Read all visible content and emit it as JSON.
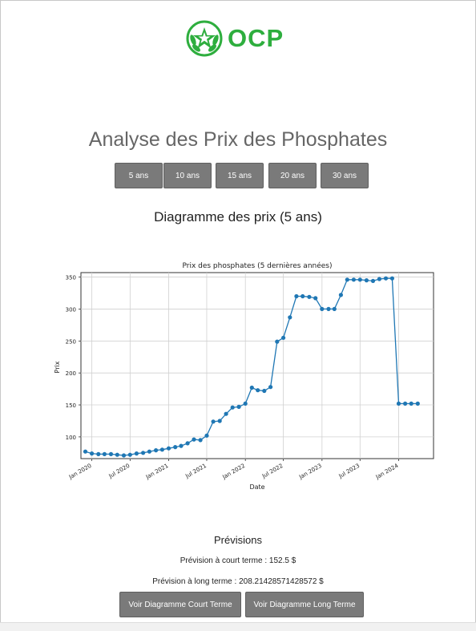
{
  "brand": {
    "name": "OCP",
    "color": "#2eae3e"
  },
  "page": {
    "title": "Analyse des Prix des Phosphates"
  },
  "range_buttons": [
    "5 ans",
    "10 ans",
    "15 ans",
    "20 ans",
    "30 ans"
  ],
  "section": {
    "title": "Diagramme des prix (5 ans)"
  },
  "chart_data": {
    "type": "line",
    "title": "Prix des phosphates (5 dernières années)",
    "xlabel": "Date",
    "ylabel": "Prix",
    "x_ticks": [
      "Jan 2020",
      "Jul 2020",
      "Jan 2021",
      "Jul 2021",
      "Jan 2022",
      "Jul 2022",
      "Jan 2023",
      "Jul 2023",
      "Jan 2024"
    ],
    "y_ticks": [
      100,
      150,
      200,
      250,
      300,
      350
    ],
    "ylim": [
      66,
      357
    ],
    "xlim": [
      "2019-11-10",
      "2024-06-15"
    ],
    "grid": true,
    "color": "#1f77b4",
    "series": [
      {
        "x": [
          "2019-12",
          "2020-01",
          "2020-02",
          "2020-03",
          "2020-04",
          "2020-05",
          "2020-06",
          "2020-07",
          "2020-08",
          "2020-09",
          "2020-10",
          "2020-11",
          "2020-12",
          "2021-01",
          "2021-02",
          "2021-03",
          "2021-04",
          "2021-05",
          "2021-06",
          "2021-07",
          "2021-08",
          "2021-09",
          "2021-10",
          "2021-11",
          "2021-12",
          "2022-01",
          "2022-02",
          "2022-03",
          "2022-04",
          "2022-05",
          "2022-06",
          "2022-07",
          "2022-08",
          "2022-09",
          "2022-10",
          "2022-11",
          "2022-12",
          "2023-01",
          "2023-02",
          "2023-03",
          "2023-04",
          "2023-05",
          "2023-06",
          "2023-07",
          "2023-08",
          "2023-09",
          "2023-10",
          "2023-11",
          "2023-12",
          "2024-01",
          "2024-02",
          "2024-03",
          "2024-04"
        ],
        "values": [
          77,
          74,
          73,
          73,
          73,
          72,
          71,
          72,
          74,
          75,
          77,
          79,
          80,
          82,
          84,
          86,
          90,
          96,
          95,
          102,
          124,
          125,
          136,
          146,
          147,
          152,
          177,
          173,
          172,
          178,
          249,
          255,
          287,
          320,
          320,
          319,
          317,
          300,
          300,
          300,
          322,
          346,
          346,
          346,
          345,
          344,
          347,
          348,
          348,
          152,
          152,
          152,
          152
        ]
      }
    ]
  },
  "previsions": {
    "title": "Prévisions",
    "court_terme": "Prévision à court terme : 152.5 $",
    "long_terme": "Prévision à long terme : 208.21428571428572 $"
  },
  "bottom_buttons": [
    "Voir Diagramme Court Terme",
    "Voir Diagramme Long Terme"
  ]
}
